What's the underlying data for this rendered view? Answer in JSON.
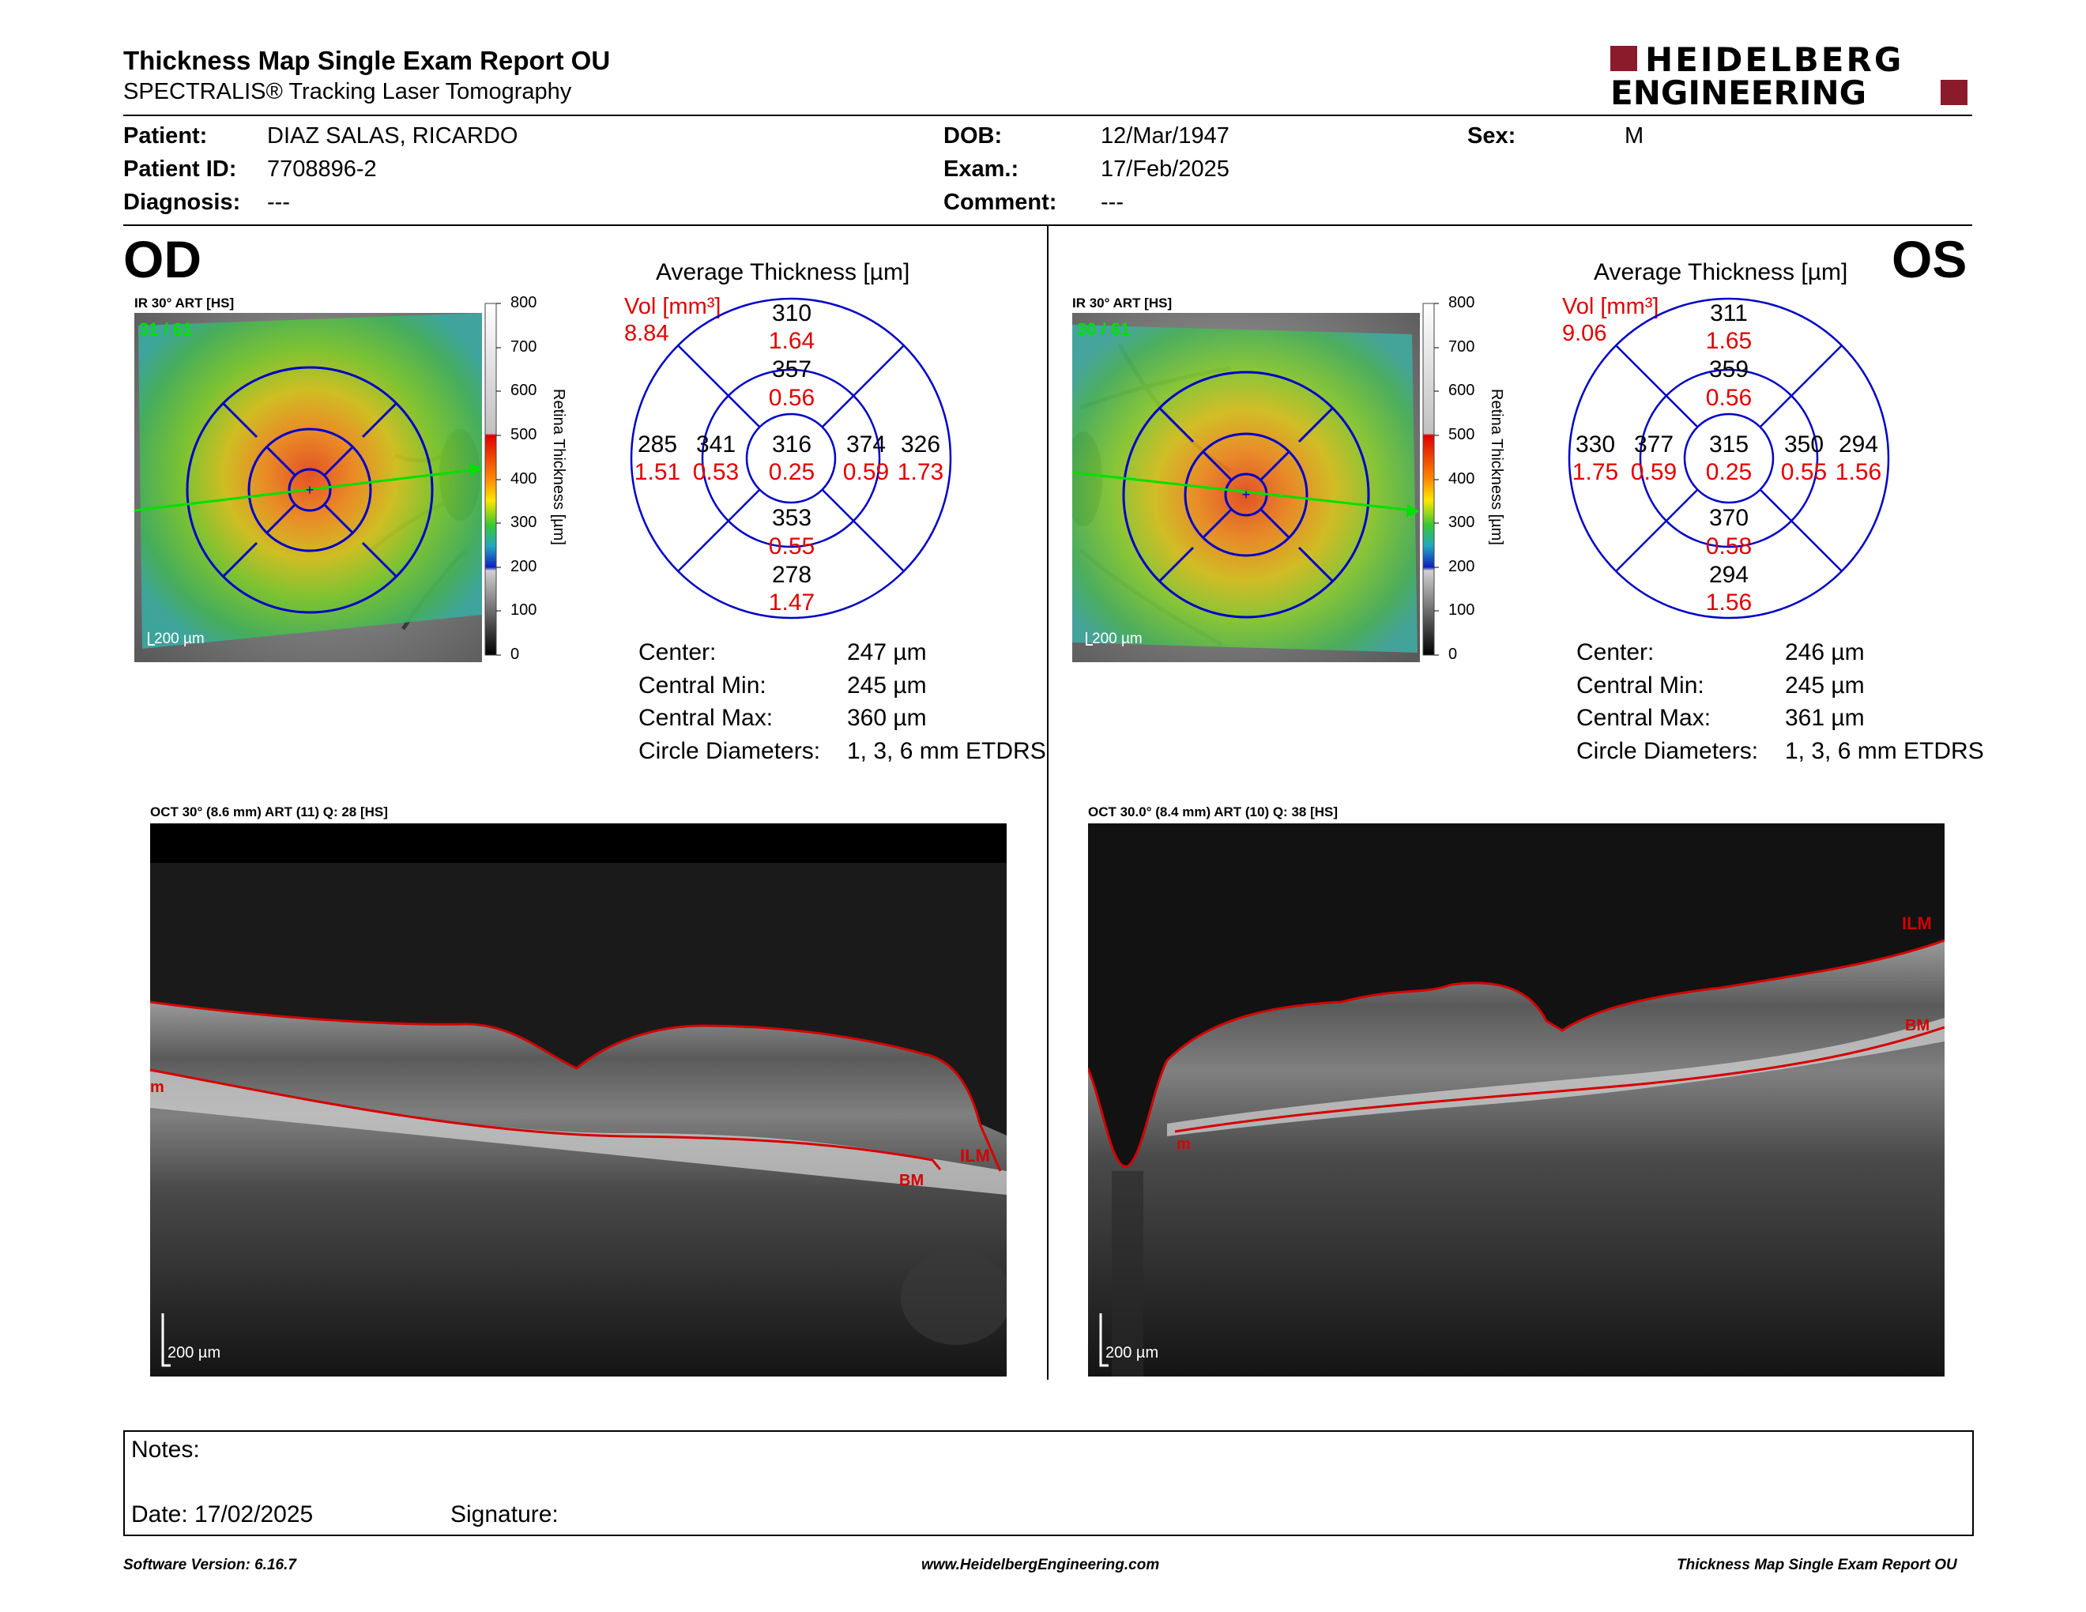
{
  "report": {
    "title": "Thickness Map Single Exam Report OU",
    "subtitle": "SPECTRALIS® Tracking Laser Tomography",
    "brand_line1": "HEIDELBERG",
    "brand_line2": "ENGINEERING",
    "brand_color": "#8b1a2b"
  },
  "patient": {
    "patient_label": "Patient:",
    "patient_value": "DIAZ SALAS, RICARDO",
    "id_label": "Patient ID:",
    "id_value": "7708896-2",
    "diagnosis_label": "Diagnosis:",
    "diagnosis_value": "---",
    "dob_label": "DOB:",
    "dob_value": "12/Mar/1947",
    "exam_label": "Exam.:",
    "exam_value": "17/Feb/2025",
    "comment_label": "Comment:",
    "comment_value": "---",
    "sex_label": "Sex:",
    "sex_value": "M"
  },
  "od": {
    "eye": "OD",
    "ir_label": "IR 30° ART [HS]",
    "frame": "31 / 61",
    "scale": "200 µm",
    "avg_title": "Average Thickness [µm]",
    "vol_label": "Vol [mm³]",
    "vol_value": "8.84",
    "center_t": "316",
    "center_v": "0.25",
    "inner_sup_t": "357",
    "inner_sup_v": "0.56",
    "inner_inf_t": "353",
    "inner_inf_v": "0.55",
    "inner_left_t": "341",
    "inner_left_v": "0.53",
    "inner_right_t": "374",
    "inner_right_v": "0.59",
    "outer_sup_t": "310",
    "outer_sup_v": "1.64",
    "outer_inf_t": "278",
    "outer_inf_v": "1.47",
    "outer_left_t": "285",
    "outer_left_v": "1.51",
    "outer_right_t": "326",
    "outer_right_v": "1.73",
    "center_label": "Center:",
    "center_value": "247 µm",
    "min_label": "Central Min:",
    "min_value": "245 µm",
    "max_label": "Central Max:",
    "max_value": "360 µm",
    "diam_label": "Circle Diameters:",
    "diam_value": "1, 3, 6 mm ETDRS",
    "oct_label": "OCT 30° (8.6 mm) ART (11) Q: 28 [HS]",
    "oct_scale": "200 µm",
    "ilm": "ILM",
    "bm": "BM",
    "m": "m"
  },
  "os": {
    "eye": "OS",
    "ir_label": "IR 30° ART [HS]",
    "frame": "30 / 61",
    "scale": "200 µm",
    "avg_title": "Average Thickness [µm]",
    "vol_label": "Vol [mm³]",
    "vol_value": "9.06",
    "center_t": "315",
    "center_v": "0.25",
    "inner_sup_t": "359",
    "inner_sup_v": "0.56",
    "inner_inf_t": "370",
    "inner_inf_v": "0.58",
    "inner_left_t": "377",
    "inner_left_v": "0.59",
    "inner_right_t": "350",
    "inner_right_v": "0.55",
    "outer_sup_t": "311",
    "outer_sup_v": "1.65",
    "outer_inf_t": "294",
    "outer_inf_v": "1.56",
    "outer_left_t": "330",
    "outer_left_v": "1.75",
    "outer_right_t": "294",
    "outer_right_v": "1.56",
    "center_label": "Center:",
    "center_value": "246 µm",
    "min_label": "Central Min:",
    "min_value": "245 µm",
    "max_label": "Central Max:",
    "max_value": "361 µm",
    "diam_label": "Circle Diameters:",
    "diam_value": "1, 3, 6 mm ETDRS",
    "oct_label": "OCT 30.0° (8.4 mm) ART (10) Q: 38 [HS]",
    "oct_scale": "200 µm",
    "ilm": "ILM",
    "bm": "BM",
    "m": "m"
  },
  "colorbar": {
    "ticks": [
      "800",
      "700",
      "600",
      "500",
      "400",
      "300",
      "200",
      "100",
      "0"
    ],
    "title": "Retina Thickness [µm]"
  },
  "notes": {
    "notes_label": "Notes:",
    "date_label": "Date: 17/02/2025",
    "signature_label": "Signature:"
  },
  "footer": {
    "version": "Software Version: 6.16.7",
    "url": "www.HeidelbergEngineering.com",
    "report_name": "Thickness Map Single Exam Report OU"
  },
  "colors": {
    "grid_blue": "#0000c8",
    "volume_red": "#e00000",
    "segment_red": "#d40000",
    "scan_green": "#00e000"
  }
}
